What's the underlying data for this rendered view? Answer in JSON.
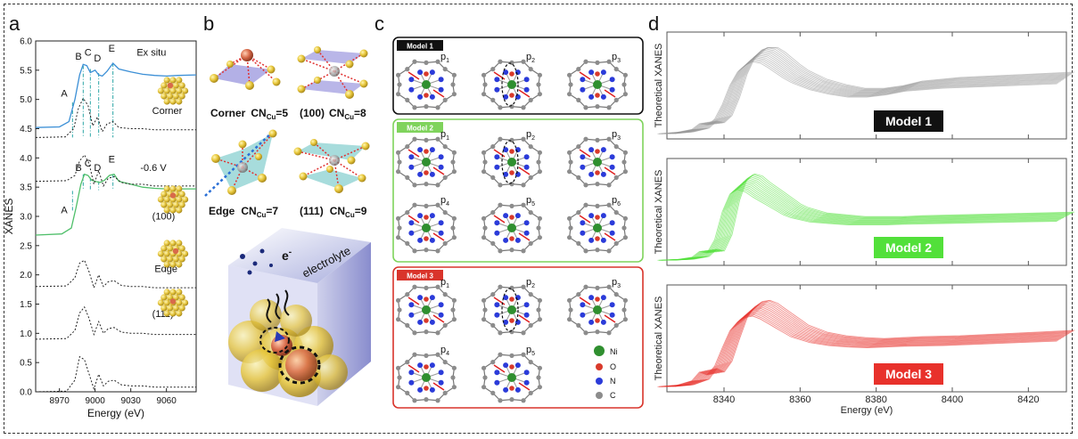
{
  "panel_letters": {
    "a": "a",
    "b": "b",
    "c": "c",
    "d": "d"
  },
  "panel_a": {
    "ylabel": "XANES",
    "xlabel": "Energy (eV)",
    "ylim": [
      0.0,
      6.0
    ],
    "xlim": [
      8950,
      9085
    ],
    "ytick_labels": [
      "0.0",
      "0.5",
      "1.0",
      "1.5",
      "2.0",
      "2.5",
      "3.0",
      "3.5",
      "4.0",
      "4.5",
      "5.0",
      "5.5",
      "6.0"
    ],
    "xtick_labels": [
      "8970",
      "9000",
      "9030",
      "9060"
    ],
    "feature_labels_top": [
      "A",
      "B",
      "C",
      "D",
      "E"
    ],
    "feature_labels_mid": [
      "A",
      "B",
      "C",
      "D",
      "E"
    ],
    "curve_labels": [
      "Ex situ",
      "Corner",
      "-0.6 V",
      "(100)",
      "Edge",
      "(111)"
    ],
    "colors": {
      "ex_situ": "#3b8fd6",
      "minus06": "#4fbf6a",
      "theory": "#222222"
    }
  },
  "panel_b": {
    "cn_label_corner": "Corner",
    "cn_label_100": "(100)",
    "cn_label_edge": "Edge",
    "cn_label_111": "(111)",
    "cn_prefix": "CN",
    "cn_sub": "Cu",
    "cn_values": [
      "=5",
      "=8",
      "=7",
      "=9"
    ],
    "electron_label": "e",
    "electron_sup": "-",
    "electrolyte_label": "electrolyte"
  },
  "panel_c": {
    "model_titles": [
      "Model 1",
      "Model 2",
      "Model 3"
    ],
    "model_colors": [
      "#111111",
      "#7fd35c",
      "#d9342b"
    ],
    "model1_p": [
      "p",
      "p",
      "p"
    ],
    "model1_sub": [
      "1",
      "2",
      "3"
    ],
    "model2_p": [
      "p",
      "p",
      "p",
      "p",
      "p",
      "p"
    ],
    "model2_sub": [
      "1",
      "2",
      "3",
      "4",
      "5",
      "6"
    ],
    "model3_p": [
      "p",
      "p",
      "p",
      "p",
      "p"
    ],
    "model3_sub": [
      "1",
      "2",
      "3",
      "4",
      "5"
    ],
    "legend": [
      "Ni",
      "O",
      "N",
      "C"
    ],
    "legend_colors": [
      "#2f8f2f",
      "#d93a2b",
      "#2b3bd9",
      "#8c8c8c"
    ]
  },
  "chart_data": [
    {
      "type": "line",
      "title": "",
      "xlabel": "Energy (eV)",
      "ylabel": "XANES",
      "xlim": [
        8950,
        9085
      ],
      "ylim": [
        0.0,
        6.0
      ],
      "series": [
        {
          "name": "Ex situ",
          "x": [
            8950,
            8970,
            8978,
            8983,
            8987,
            8990,
            8993,
            8996,
            9000,
            9003,
            9006,
            9010,
            9015,
            9020,
            9030,
            9040,
            9050,
            9060,
            9070,
            9085
          ],
          "values": [
            4.52,
            4.53,
            4.62,
            5.0,
            5.42,
            5.6,
            5.58,
            5.46,
            5.5,
            5.42,
            5.4,
            5.48,
            5.62,
            5.52,
            5.47,
            5.43,
            5.41,
            5.4,
            5.41,
            5.42
          ]
        },
        {
          "name": "Corner",
          "x": [
            8950,
            8975,
            8982,
            8986,
            8990,
            8994,
            8998,
            9002,
            9006,
            9010,
            9015,
            9020,
            9030,
            9040,
            9050,
            9060,
            9070,
            9085
          ],
          "values": [
            4.35,
            4.36,
            4.5,
            4.85,
            5.02,
            4.9,
            4.55,
            4.7,
            4.45,
            4.58,
            4.62,
            4.52,
            4.5,
            4.5,
            4.48,
            4.48,
            4.48,
            4.48
          ]
        },
        {
          "name": "-0.6 V",
          "x": [
            8950,
            8972,
            8980,
            8984,
            8988,
            8991,
            8994,
            8997,
            9000,
            9004,
            9008,
            9012,
            9016,
            9020,
            9030,
            9040,
            9050,
            9060,
            9070,
            9085
          ],
          "values": [
            2.68,
            2.7,
            2.8,
            3.15,
            3.55,
            3.72,
            3.7,
            3.62,
            3.6,
            3.58,
            3.62,
            3.7,
            3.72,
            3.6,
            3.55,
            3.5,
            3.48,
            3.47,
            3.47,
            3.47
          ]
        },
        {
          "name": "(100)",
          "x": [
            8950,
            8976,
            8983,
            8987,
            8991,
            8995,
            8999,
            9003,
            9007,
            9011,
            9016,
            9022,
            9030,
            9040,
            9050,
            9060,
            9070,
            9085
          ],
          "values": [
            3.6,
            3.61,
            3.7,
            3.95,
            4.05,
            3.9,
            3.55,
            3.78,
            3.52,
            3.65,
            3.68,
            3.58,
            3.55,
            3.55,
            3.52,
            3.52,
            3.52,
            3.52
          ]
        },
        {
          "name": "Edge",
          "x": [
            8950,
            8976,
            8983,
            8987,
            8991,
            8995,
            8999,
            9003,
            9007,
            9011,
            9016,
            9022,
            9030,
            9040,
            9050,
            9060,
            9070,
            9085
          ],
          "values": [
            1.8,
            1.81,
            1.95,
            2.2,
            2.25,
            2.05,
            1.78,
            2.0,
            1.8,
            1.88,
            1.9,
            1.82,
            1.8,
            1.8,
            1.78,
            1.78,
            1.78,
            1.78
          ]
        },
        {
          "name": "(111)",
          "x": [
            8950,
            8976,
            8983,
            8987,
            8991,
            8995,
            8999,
            9003,
            9007,
            9011,
            9016,
            9022,
            9030,
            9040,
            9050,
            9060,
            9070,
            9085
          ],
          "values": [
            0.9,
            0.91,
            1.05,
            1.35,
            1.45,
            1.25,
            0.98,
            1.2,
            1.0,
            1.08,
            1.1,
            1.02,
            1.0,
            1.0,
            0.98,
            0.98,
            0.98,
            0.98
          ]
        },
        {
          "name": "",
          "x": [
            8950,
            8976,
            8983,
            8987,
            8991,
            8995,
            8999,
            9003,
            9007,
            9011,
            9016,
            9022,
            9030,
            9040,
            9050,
            9060,
            9070,
            9085
          ],
          "values": [
            0.0,
            0.01,
            0.2,
            0.6,
            0.55,
            0.3,
            0.05,
            0.3,
            0.1,
            0.18,
            0.2,
            0.12,
            0.1,
            0.1,
            0.08,
            0.08,
            0.08,
            0.08
          ]
        }
      ]
    },
    {
      "type": "line",
      "ylabel": "Theoretical XANES",
      "xlabel": "Energy (eV)",
      "xlim": [
        8325,
        8430
      ],
      "xtick_labels": [
        "8340",
        "8360",
        "8380",
        "8400",
        "8420"
      ],
      "series": [
        {
          "name": "Model 1",
          "color": "#999999",
          "x": [
            8325,
            8330,
            8334,
            8336,
            8338,
            8340,
            8342,
            8344,
            8346,
            8348,
            8350,
            8352,
            8354,
            8356,
            8358,
            8360,
            8365,
            8370,
            8375,
            8380,
            8385,
            8390,
            8400,
            8410,
            8420,
            8430
          ],
          "values": [
            0.02,
            0.04,
            0.08,
            0.16,
            0.14,
            0.22,
            0.42,
            0.68,
            0.86,
            0.95,
            1.0,
            0.98,
            0.92,
            0.85,
            0.78,
            0.72,
            0.62,
            0.56,
            0.52,
            0.52,
            0.55,
            0.6,
            0.64,
            0.66,
            0.68,
            0.7
          ]
        },
        {
          "name": "Model 2",
          "color": "#52e03a",
          "x": [
            8325,
            8330,
            8334,
            8336,
            8338,
            8340,
            8342,
            8344,
            8346,
            8348,
            8350,
            8352,
            8354,
            8356,
            8358,
            8360,
            8365,
            8370,
            8375,
            8380,
            8385,
            8390,
            8400,
            8410,
            8420,
            8430
          ],
          "values": [
            0.02,
            0.03,
            0.06,
            0.14,
            0.12,
            0.3,
            0.68,
            0.92,
            0.98,
            0.95,
            0.88,
            0.82,
            0.76,
            0.7,
            0.64,
            0.6,
            0.54,
            0.52,
            0.5,
            0.5,
            0.5,
            0.51,
            0.52,
            0.53,
            0.54,
            0.55
          ]
        },
        {
          "name": "Model 3",
          "color": "#e8312b",
          "x": [
            8325,
            8330,
            8334,
            8336,
            8338,
            8340,
            8342,
            8344,
            8346,
            8348,
            8350,
            8352,
            8354,
            8356,
            8358,
            8360,
            8365,
            8370,
            8375,
            8380,
            8385,
            8390,
            8400,
            8410,
            8420,
            8430
          ],
          "values": [
            0.02,
            0.04,
            0.1,
            0.22,
            0.18,
            0.3,
            0.55,
            0.78,
            0.9,
            0.96,
            0.98,
            0.94,
            0.88,
            0.82,
            0.76,
            0.7,
            0.62,
            0.58,
            0.56,
            0.55,
            0.56,
            0.57,
            0.58,
            0.6,
            0.62,
            0.64
          ]
        }
      ]
    }
  ]
}
